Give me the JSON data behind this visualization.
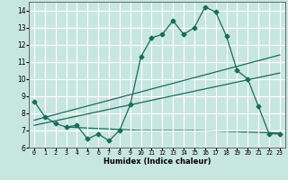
{
  "xlabel": "Humidex (Indice chaleur)",
  "xlim": [
    -0.5,
    23.5
  ],
  "ylim": [
    6,
    14.5
  ],
  "yticks": [
    6,
    7,
    8,
    9,
    10,
    11,
    12,
    13,
    14
  ],
  "xticks": [
    0,
    1,
    2,
    3,
    4,
    5,
    6,
    7,
    8,
    9,
    10,
    11,
    12,
    13,
    14,
    15,
    16,
    17,
    18,
    19,
    20,
    21,
    22,
    23
  ],
  "bg_color": "#c8e6e0",
  "line_color": "#1a6b5a",
  "grid_color": "#ffffff",
  "main_x": [
    0,
    1,
    2,
    3,
    4,
    5,
    6,
    7,
    8,
    9,
    10,
    11,
    12,
    13,
    14,
    15,
    16,
    17,
    18,
    19,
    20,
    21,
    22,
    23
  ],
  "main_y": [
    8.7,
    7.8,
    7.4,
    7.2,
    7.3,
    6.5,
    6.8,
    6.4,
    7.0,
    8.5,
    11.3,
    12.4,
    12.6,
    13.4,
    12.6,
    13.0,
    14.2,
    13.9,
    12.5,
    10.5,
    10.0,
    8.4,
    6.8,
    6.8
  ],
  "upper_trend_x": [
    0,
    23
  ],
  "upper_trend_y": [
    7.6,
    11.4
  ],
  "lower_trend_x": [
    0,
    23
  ],
  "lower_trend_y": [
    7.3,
    10.35
  ],
  "flat_line_x": [
    3,
    10,
    15,
    23
  ],
  "flat_line_y": [
    7.2,
    7.0,
    7.0,
    6.85
  ]
}
